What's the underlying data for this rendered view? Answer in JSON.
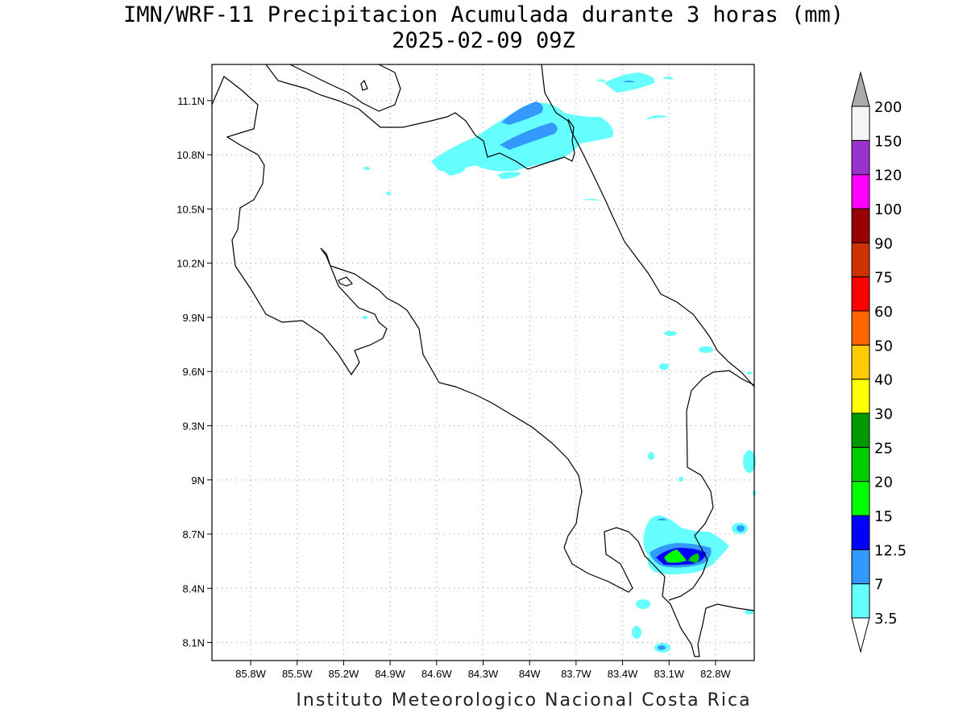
{
  "title": {
    "line1": "IMN/WRF-11 Precipitacion Acumulada durante 3 horas (mm)",
    "line2": "2025-02-09 09Z"
  },
  "credit": "Instituto Meteorologico Nacional Costa Rica",
  "map": {
    "lon_range": [
      -86.05,
      -82.55
    ],
    "lat_range": [
      8.0,
      11.3
    ],
    "grid": true,
    "lat_ticks": [
      "11.1N",
      "10.8N",
      "10.5N",
      "10.2N",
      "9.9N",
      "9.6N",
      "9.3N",
      "9N",
      "8.7N",
      "8.4N",
      "8.1N"
    ],
    "lat_values": [
      11.1,
      10.8,
      10.5,
      10.2,
      9.9,
      9.6,
      9.3,
      9.0,
      8.7,
      8.4,
      8.1
    ],
    "lon_ticks": [
      "85.8W",
      "85.5W",
      "85.2W",
      "84.9W",
      "84.6W",
      "84.3W",
      "84W",
      "83.7W",
      "83.4W",
      "83.1W",
      "82.8W"
    ],
    "lon_values": [
      -85.8,
      -85.5,
      -85.2,
      -84.9,
      -84.6,
      -84.3,
      -84.0,
      -83.7,
      -83.4,
      -83.1,
      -82.8
    ]
  },
  "colorbar": {
    "levels": [
      "3.5",
      "7",
      "12.5",
      "15",
      "20",
      "25",
      "30",
      "40",
      "50",
      "60",
      "75",
      "90",
      "100",
      "120",
      "150",
      "200"
    ],
    "colors": [
      "#66ffff",
      "#3399ff",
      "#0000ff",
      "#00ff00",
      "#00cc00",
      "#009900",
      "#ffff00",
      "#ffcc00",
      "#ff6600",
      "#ff0000",
      "#cc3300",
      "#990000",
      "#ff00ff",
      "#9933cc",
      "#f5f5f5"
    ],
    "over_color": "#aaaaaa",
    "under_color": "#ffffff"
  },
  "precip_areas": [
    {
      "name": "north-cluster",
      "lon": -84.1,
      "lat": 10.88,
      "level": "3.5"
    },
    {
      "name": "north-core",
      "lon": -84.0,
      "lat": 10.9,
      "level": "7"
    },
    {
      "name": "south-cluster",
      "lon": -83.05,
      "lat": 8.6,
      "level": "3.5"
    },
    {
      "name": "south-core",
      "lon": -83.02,
      "lat": 8.56,
      "level": "12.5"
    },
    {
      "name": "south-peak",
      "lon": -83.05,
      "lat": 8.57,
      "level": "20"
    }
  ]
}
